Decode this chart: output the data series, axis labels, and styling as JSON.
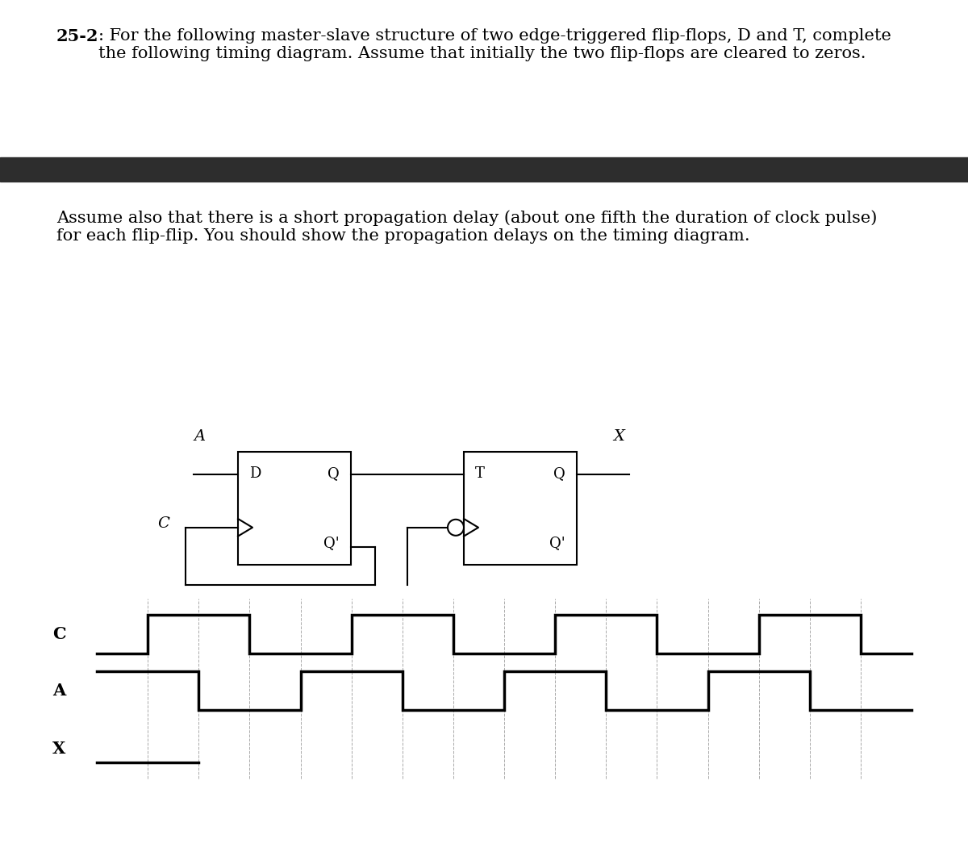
{
  "title_bold": "25-2",
  "title_rest": ": For the following master-slave structure of two edge-triggered flip-flops, D and T, complete\nthe following timing diagram. Assume that initially the two flip-flops are cleared to zeros.",
  "sub_text": "Assume also that there is a short propagation delay (about one fifth the duration of clock pulse)\nfor each flip-flip. You should show the propagation delays on the timing diagram.",
  "dark_bar_color": "#2d2d2d",
  "background_color": "#ffffff",
  "signal_color": "#000000",
  "dashed_color": "#aaaaaa",
  "signal_linewidth": 2.5,
  "dashed_linewidth": 0.7,
  "text_font_size": 15,
  "bold_font_size": 15,
  "circ_font_size": 13,
  "diag_label_font_size": 15
}
